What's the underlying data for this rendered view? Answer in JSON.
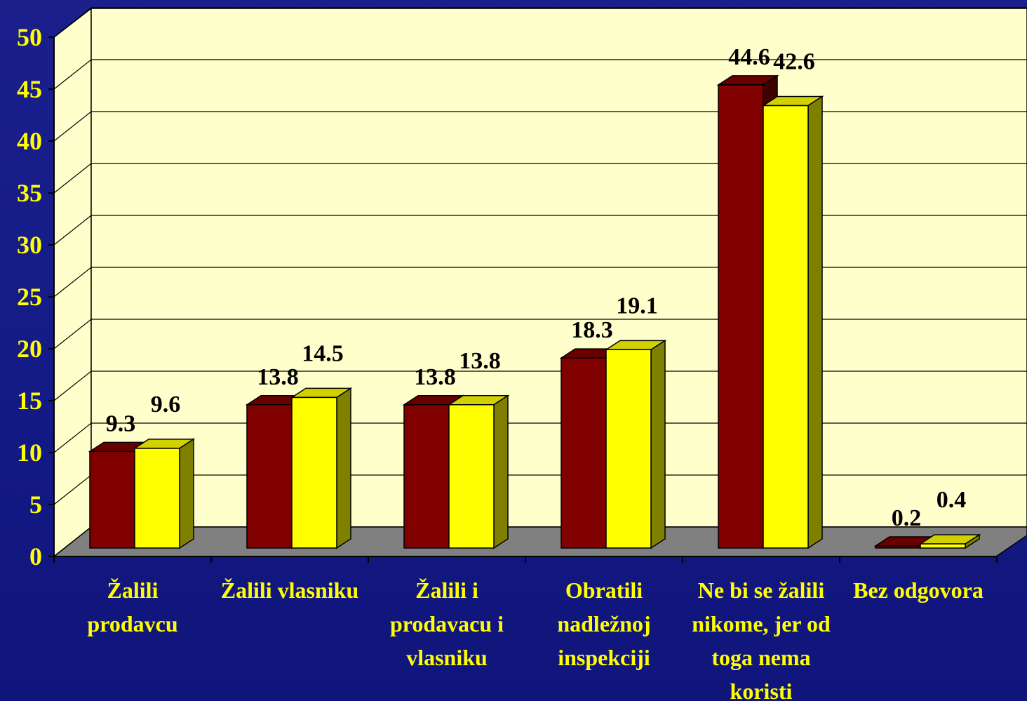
{
  "chart_data": {
    "type": "bar",
    "style": "3d-clustered-column",
    "categories": [
      [
        "Žalili",
        "prodavcu"
      ],
      [
        "Žalili vlasniku"
      ],
      [
        "Žalili i",
        "prodavacu i",
        "vlasniku"
      ],
      [
        "Obratili",
        "nadležnoj",
        "inspekciji"
      ],
      [
        "Ne bi se žalili",
        "nikome, jer od",
        "toga nema",
        "koristi"
      ],
      [
        "Bez odgovora"
      ]
    ],
    "series": [
      {
        "values": [
          9.3,
          13.8,
          13.8,
          18.3,
          44.6,
          0.2
        ],
        "color": "#800000"
      },
      {
        "values": [
          9.6,
          14.5,
          13.8,
          19.1,
          42.6,
          0.4
        ],
        "color": "#ffff00"
      }
    ],
    "ylim": [
      0,
      50
    ],
    "yticks": [
      "0",
      "5",
      "10",
      "15",
      "20",
      "25",
      "30",
      "35",
      "40",
      "45",
      "50"
    ],
    "grid": true,
    "legend": "none",
    "colors": {
      "background": "#141a86",
      "wall": "#ffffcc",
      "floor": "#808080",
      "tick_text": "#ffff00",
      "value_text": "#000000"
    }
  }
}
